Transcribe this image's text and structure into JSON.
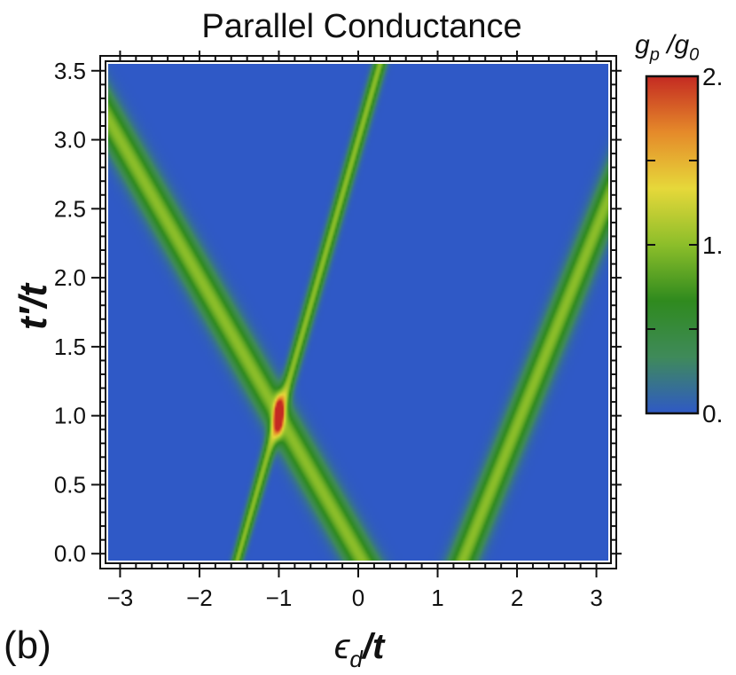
{
  "chart_data": {
    "type": "heatmap",
    "title": "Parallel Conductance",
    "xlabel_symbol": "ϵ",
    "xlabel_subscript": "d",
    "xlabel_rest": "/t",
    "ylabel": "t′/t",
    "xlim": [
      -3.15,
      3.15
    ],
    "ylim": [
      -0.05,
      3.55
    ],
    "x_ticks": [
      -3,
      -2,
      -1,
      0,
      1,
      2,
      3
    ],
    "x_tick_labels": [
      "−3",
      "−2",
      "−1",
      "0",
      "1",
      "2",
      "3"
    ],
    "y_ticks": [
      0.0,
      0.5,
      1.0,
      1.5,
      2.0,
      2.5,
      3.0,
      3.5
    ],
    "y_tick_labels": [
      "0.0",
      "0.5",
      "1.0",
      "1.5",
      "2.0",
      "2.5",
      "3.0",
      "3.5"
    ],
    "colorbar": {
      "label_main": "g",
      "label_sub_num": "p",
      "label_den_main": "g",
      "label_sub_den": "0",
      "range": [
        0,
        2
      ],
      "ticks": [
        0,
        1,
        2
      ],
      "tick_labels": [
        "0.",
        "1.",
        "2."
      ],
      "colors": [
        "#2f59c6",
        "#3f8a5a",
        "#2f8a1e",
        "#8cbe2a",
        "#e6d83a",
        "#e58a2a",
        "#c42a22"
      ]
    },
    "features": [
      {
        "name": "broad band (negative slope)",
        "line": "eps = -t'",
        "width": 0.22
      },
      {
        "name": "narrow band (positive slope)",
        "line": "eps = -1.5 + 0.5 t'",
        "width": 0.05
      },
      {
        "name": "broad band (positive slope)",
        "line": "eps = 1.35 + 0.7 t'",
        "width": 0.18
      },
      {
        "name": "crossing peak",
        "at": [
          -1.0,
          1.0
        ],
        "value": 2.0
      }
    ],
    "background_value": 0.0
  },
  "panel_label": "(b)"
}
